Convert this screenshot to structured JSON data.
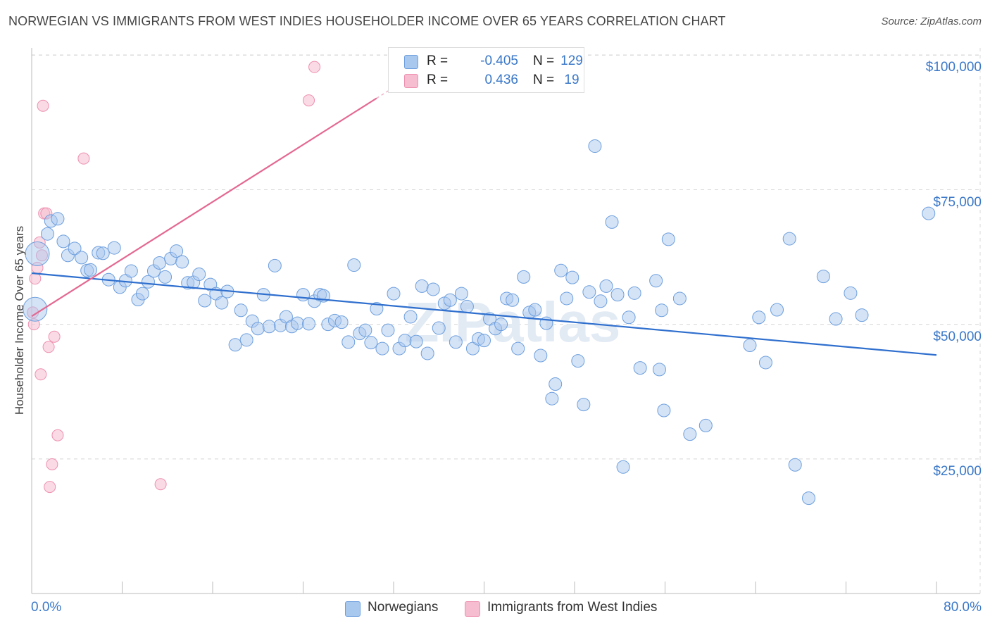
{
  "title": "NORWEGIAN VS IMMIGRANTS FROM WEST INDIES HOUSEHOLDER INCOME OVER 65 YEARS CORRELATION CHART",
  "source": "Source: ZipAtlas.com",
  "watermark": "ZIPatlas",
  "colors": {
    "norwegians_fill": "#a9c8ee",
    "norwegians_stroke": "#6d9fde",
    "norwegians_line": "#2f6fce",
    "west_indies_fill": "#f6bdd0",
    "west_indies_stroke": "#ee8fb0",
    "west_indies_line": "#e46891",
    "axis_text": "#3b78c8",
    "grid": "#d8d8d8"
  },
  "legend": {
    "rows": [
      {
        "r_label": "R =",
        "r_value": "-0.405",
        "n_label": "N =",
        "n_value": "129"
      },
      {
        "r_label": "R =",
        "r_value": "0.436",
        "n_label": "N =",
        "n_value": "19"
      }
    ]
  },
  "bottom_legend": {
    "items": [
      {
        "label": "Norwegians"
      },
      {
        "label": "Immigrants from West Indies"
      }
    ]
  },
  "chart_data": {
    "type": "scatter",
    "xlabel": "",
    "ylabel": "Householder Income Over 65 years",
    "xlim": [
      0,
      80
    ],
    "ylim": [
      0,
      105000
    ],
    "x_tick_labels": [
      "0.0%",
      "80.0%"
    ],
    "y_tick_labels": [
      "$25,000",
      "$50,000",
      "$75,000",
      "$100,000"
    ],
    "y_ticks": [
      25000,
      50000,
      75000,
      100000
    ],
    "grid": true,
    "legend_position": "top-center",
    "series": [
      {
        "name": "Norwegians",
        "trendline": {
          "x": [
            0,
            80
          ],
          "y": [
            59500,
            44300
          ]
        },
        "points": [
          [
            0.3,
            52800
          ],
          [
            0.5,
            63100
          ],
          [
            1.4,
            66800
          ],
          [
            1.7,
            69200
          ],
          [
            2.3,
            69600
          ],
          [
            2.8,
            65400
          ],
          [
            3.2,
            62800
          ],
          [
            3.8,
            64100
          ],
          [
            4.4,
            62400
          ],
          [
            4.9,
            60000
          ],
          [
            5.2,
            60100
          ],
          [
            5.9,
            63300
          ],
          [
            6.3,
            63200
          ],
          [
            6.8,
            58300
          ],
          [
            7.3,
            64200
          ],
          [
            7.8,
            56900
          ],
          [
            8.3,
            58100
          ],
          [
            8.8,
            59900
          ],
          [
            9.4,
            54600
          ],
          [
            9.8,
            55700
          ],
          [
            10.3,
            57900
          ],
          [
            10.8,
            59900
          ],
          [
            11.3,
            61400
          ],
          [
            11.8,
            58800
          ],
          [
            12.3,
            62200
          ],
          [
            12.8,
            63600
          ],
          [
            13.3,
            61600
          ],
          [
            13.8,
            57700
          ],
          [
            14.3,
            57800
          ],
          [
            14.8,
            59300
          ],
          [
            15.3,
            54400
          ],
          [
            15.8,
            57400
          ],
          [
            16.3,
            55700
          ],
          [
            16.8,
            54000
          ],
          [
            17.3,
            56100
          ],
          [
            18.0,
            46200
          ],
          [
            18.5,
            52600
          ],
          [
            19.0,
            47100
          ],
          [
            19.5,
            50600
          ],
          [
            20.0,
            49200
          ],
          [
            20.5,
            55500
          ],
          [
            21.0,
            49600
          ],
          [
            21.5,
            60900
          ],
          [
            22.0,
            49800
          ],
          [
            22.5,
            51400
          ],
          [
            23.0,
            49600
          ],
          [
            23.5,
            50200
          ],
          [
            24.0,
            55500
          ],
          [
            24.5,
            50100
          ],
          [
            25.0,
            54300
          ],
          [
            25.5,
            55500
          ],
          [
            25.8,
            55300
          ],
          [
            26.2,
            50000
          ],
          [
            26.8,
            50700
          ],
          [
            27.4,
            50400
          ],
          [
            28.0,
            46700
          ],
          [
            28.5,
            61000
          ],
          [
            29.0,
            48300
          ],
          [
            29.5,
            48900
          ],
          [
            30.0,
            46600
          ],
          [
            30.5,
            52900
          ],
          [
            31.0,
            45500
          ],
          [
            31.5,
            48900
          ],
          [
            32.0,
            55700
          ],
          [
            32.5,
            45500
          ],
          [
            33.0,
            47000
          ],
          [
            33.5,
            51400
          ],
          [
            34.0,
            46800
          ],
          [
            34.5,
            57100
          ],
          [
            35.0,
            44600
          ],
          [
            35.5,
            56500
          ],
          [
            36.0,
            49300
          ],
          [
            36.5,
            53900
          ],
          [
            37.0,
            54500
          ],
          [
            37.5,
            46700
          ],
          [
            38.0,
            55700
          ],
          [
            38.5,
            53300
          ],
          [
            39.0,
            45500
          ],
          [
            39.5,
            47300
          ],
          [
            40.0,
            47000
          ],
          [
            40.5,
            51000
          ],
          [
            41.0,
            49200
          ],
          [
            41.5,
            50000
          ],
          [
            42.0,
            54800
          ],
          [
            42.5,
            54500
          ],
          [
            43.0,
            45500
          ],
          [
            43.5,
            58800
          ],
          [
            44.0,
            52200
          ],
          [
            44.5,
            52700
          ],
          [
            45.0,
            44200
          ],
          [
            45.5,
            50200
          ],
          [
            46.0,
            36200
          ],
          [
            46.3,
            38900
          ],
          [
            46.8,
            60000
          ],
          [
            47.3,
            54800
          ],
          [
            47.8,
            58700
          ],
          [
            48.3,
            43200
          ],
          [
            48.8,
            35100
          ],
          [
            49.3,
            56000
          ],
          [
            49.8,
            83100
          ],
          [
            50.3,
            54300
          ],
          [
            50.8,
            57100
          ],
          [
            51.3,
            69000
          ],
          [
            51.8,
            55500
          ],
          [
            52.3,
            23500
          ],
          [
            52.8,
            51300
          ],
          [
            53.3,
            55800
          ],
          [
            53.8,
            41900
          ],
          [
            55.2,
            58100
          ],
          [
            55.5,
            41600
          ],
          [
            55.7,
            52600
          ],
          [
            55.9,
            34000
          ],
          [
            56.3,
            65800
          ],
          [
            57.3,
            54800
          ],
          [
            58.2,
            29600
          ],
          [
            59.6,
            31200
          ],
          [
            63.5,
            46100
          ],
          [
            64.3,
            51300
          ],
          [
            64.9,
            42900
          ],
          [
            65.9,
            52700
          ],
          [
            67.0,
            65900
          ],
          [
            67.5,
            23900
          ],
          [
            68.7,
            17700
          ],
          [
            70.0,
            58900
          ],
          [
            71.1,
            51000
          ],
          [
            72.4,
            55800
          ],
          [
            73.4,
            51700
          ],
          [
            79.3,
            70600
          ]
        ]
      },
      {
        "name": "Immigrants from West Indies",
        "trendline": {
          "x": [
            0,
            30.5
          ],
          "y": [
            51500,
            92000
          ]
        },
        "trendline_dashed_to": {
          "x": [
            30.5,
            33.5
          ],
          "y": [
            92000,
            96000
          ]
        },
        "points": [
          [
            0.1,
            52200
          ],
          [
            0.2,
            50000
          ],
          [
            0.3,
            58500
          ],
          [
            0.5,
            60500
          ],
          [
            0.7,
            65200
          ],
          [
            0.9,
            62800
          ],
          [
            0.8,
            40700
          ],
          [
            1.0,
            90600
          ],
          [
            1.1,
            70600
          ],
          [
            1.3,
            70600
          ],
          [
            1.5,
            45800
          ],
          [
            1.6,
            19800
          ],
          [
            1.8,
            24000
          ],
          [
            2.0,
            47700
          ],
          [
            2.3,
            29400
          ],
          [
            4.6,
            80800
          ],
          [
            11.4,
            20300
          ],
          [
            24.5,
            91600
          ],
          [
            25.0,
            97800
          ]
        ]
      }
    ]
  }
}
